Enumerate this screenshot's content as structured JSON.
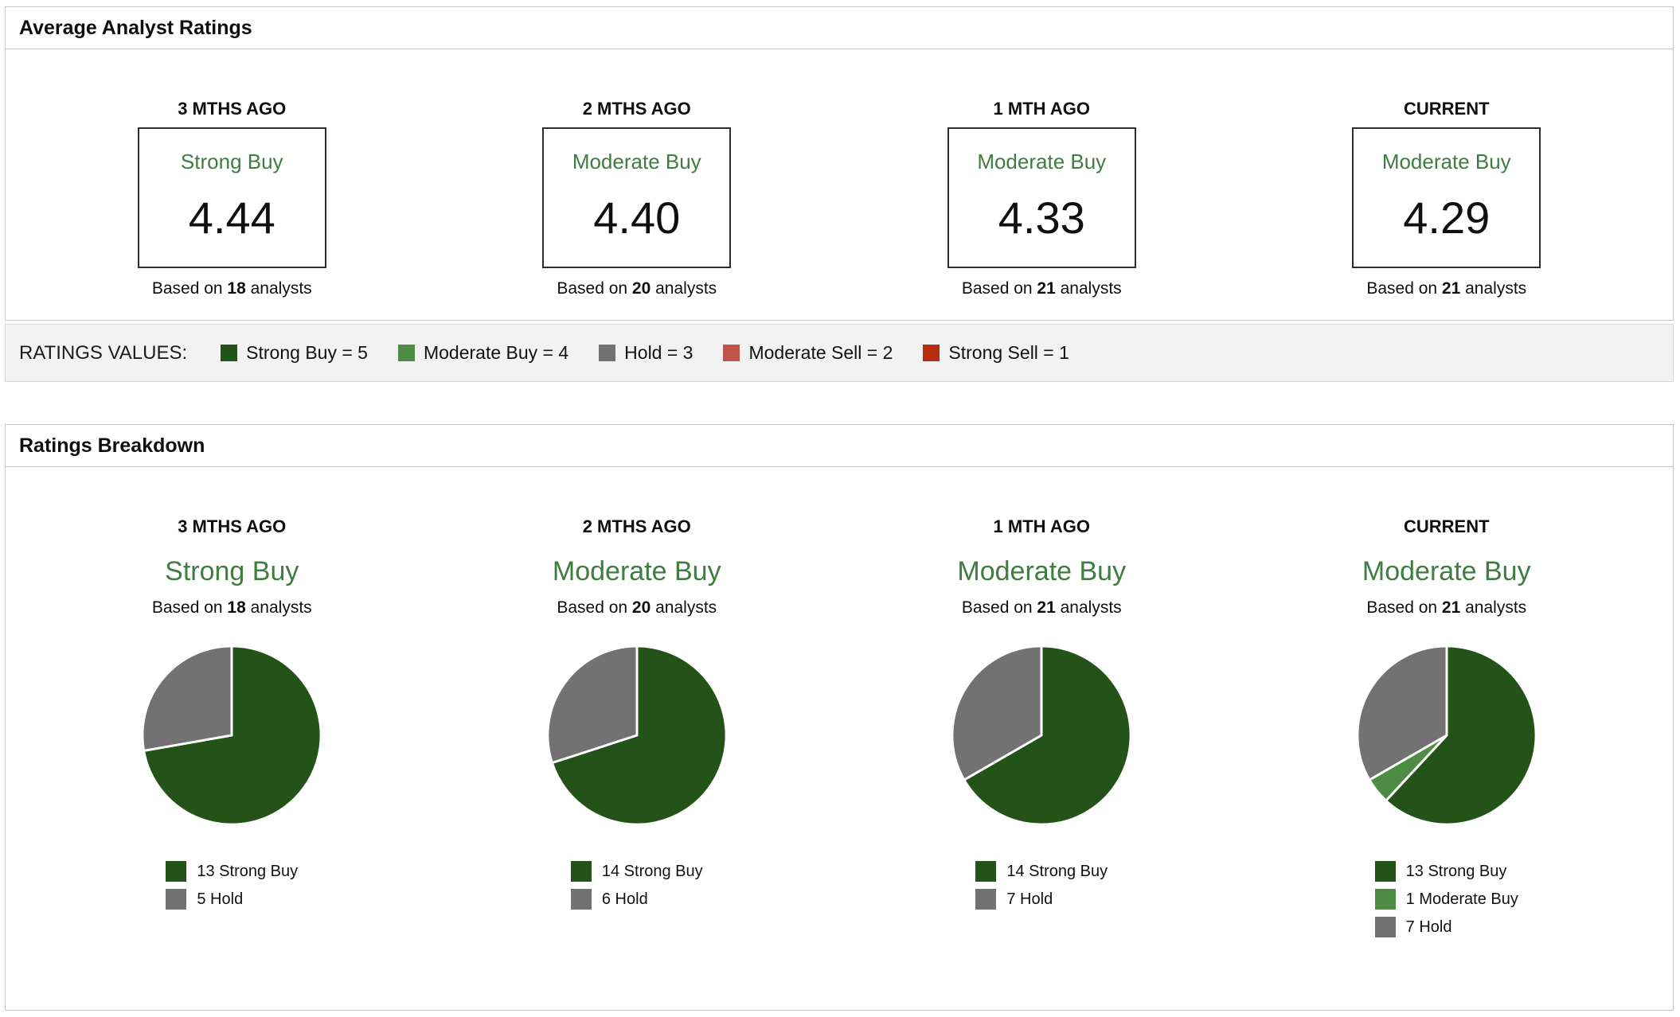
{
  "colors": {
    "strong_buy": "#24531a",
    "moderate_buy": "#4e8b45",
    "hold": "#737273",
    "moderate_sell": "#c0544a",
    "strong_sell": "#b82c0f",
    "rating_text_green": "#3e7c40"
  },
  "average_ratings": {
    "title": "Average Analyst Ratings",
    "columns": [
      {
        "period": "3 MTHS AGO",
        "rating": "Strong Buy",
        "score": "4.44",
        "based_prefix": "Based on ",
        "analyst_count": "18",
        "based_suffix": " analysts"
      },
      {
        "period": "2 MTHS AGO",
        "rating": "Moderate Buy",
        "score": "4.40",
        "based_prefix": "Based on ",
        "analyst_count": "20",
        "based_suffix": " analysts"
      },
      {
        "period": "1 MTH AGO",
        "rating": "Moderate Buy",
        "score": "4.33",
        "based_prefix": "Based on ",
        "analyst_count": "21",
        "based_suffix": " analysts"
      },
      {
        "period": "CURRENT",
        "rating": "Moderate Buy",
        "score": "4.29",
        "based_prefix": "Based on ",
        "analyst_count": "21",
        "based_suffix": " analysts"
      }
    ]
  },
  "ratings_values": {
    "label": "RATINGS VALUES:",
    "items": [
      {
        "label": "Strong Buy = 5",
        "color": "#24531a"
      },
      {
        "label": "Moderate Buy = 4",
        "color": "#4e8b45"
      },
      {
        "label": "Hold = 3",
        "color": "#737273"
      },
      {
        "label": "Moderate Sell = 2",
        "color": "#c0544a"
      },
      {
        "label": "Strong Sell = 1",
        "color": "#b82c0f"
      }
    ]
  },
  "breakdown": {
    "title": "Ratings Breakdown",
    "columns": [
      {
        "period": "3 MTHS AGO",
        "rating": "Strong Buy",
        "based_prefix": "Based on ",
        "analyst_count": "18",
        "based_suffix": " analysts",
        "legend": [
          {
            "label": "13 Strong Buy",
            "color": "#24531a"
          },
          {
            "label": "5 Hold",
            "color": "#737273"
          }
        ]
      },
      {
        "period": "2 MTHS AGO",
        "rating": "Moderate Buy",
        "based_prefix": "Based on ",
        "analyst_count": "20",
        "based_suffix": " analysts",
        "legend": [
          {
            "label": "14 Strong Buy",
            "color": "#24531a"
          },
          {
            "label": "6 Hold",
            "color": "#737273"
          }
        ]
      },
      {
        "period": "1 MTH AGO",
        "rating": "Moderate Buy",
        "based_prefix": "Based on ",
        "analyst_count": "21",
        "based_suffix": " analysts",
        "legend": [
          {
            "label": "14 Strong Buy",
            "color": "#24531a"
          },
          {
            "label": "7 Hold",
            "color": "#737273"
          }
        ]
      },
      {
        "period": "CURRENT",
        "rating": "Moderate Buy",
        "based_prefix": "Based on ",
        "analyst_count": "21",
        "based_suffix": " analysts",
        "legend": [
          {
            "label": "13 Strong Buy",
            "color": "#24531a"
          },
          {
            "label": "1 Moderate Buy",
            "color": "#4e8b45"
          },
          {
            "label": "7 Hold",
            "color": "#737273"
          }
        ]
      }
    ]
  },
  "chart_data": [
    {
      "type": "pie",
      "title": "3 MTHS AGO",
      "consensus": "Strong Buy",
      "analysts": 18,
      "labels": [
        "Strong Buy",
        "Hold"
      ],
      "values": [
        13,
        5
      ],
      "colors": [
        "#24531a",
        "#737273"
      ],
      "start_angle_deg": 0,
      "direction": "clockwise",
      "legend_position": "bottom"
    },
    {
      "type": "pie",
      "title": "2 MTHS AGO",
      "consensus": "Moderate Buy",
      "analysts": 20,
      "labels": [
        "Strong Buy",
        "Hold"
      ],
      "values": [
        14,
        6
      ],
      "colors": [
        "#24531a",
        "#737273"
      ],
      "start_angle_deg": 0,
      "direction": "clockwise",
      "legend_position": "bottom"
    },
    {
      "type": "pie",
      "title": "1 MTH AGO",
      "consensus": "Moderate Buy",
      "analysts": 21,
      "labels": [
        "Strong Buy",
        "Hold"
      ],
      "values": [
        14,
        7
      ],
      "colors": [
        "#24531a",
        "#737273"
      ],
      "start_angle_deg": 0,
      "direction": "clockwise",
      "legend_position": "bottom"
    },
    {
      "type": "pie",
      "title": "CURRENT",
      "consensus": "Moderate Buy",
      "analysts": 21,
      "labels": [
        "Strong Buy",
        "Moderate Buy",
        "Hold"
      ],
      "values": [
        13,
        1,
        7
      ],
      "colors": [
        "#24531a",
        "#4e8b45",
        "#737273"
      ],
      "start_angle_deg": 0,
      "direction": "clockwise",
      "legend_position": "bottom"
    }
  ]
}
